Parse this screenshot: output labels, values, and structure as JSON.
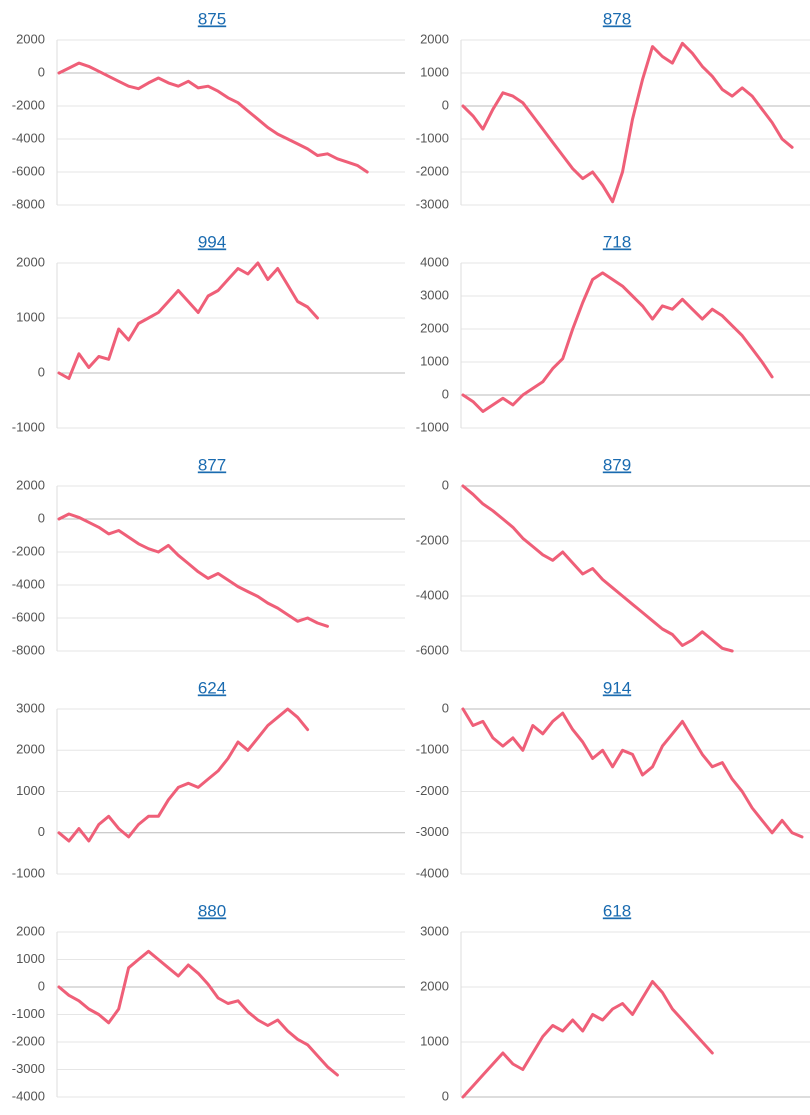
{
  "chart_data": [
    {
      "type": "line",
      "title": "875",
      "color": "#ef5f78",
      "ylim": [
        -8000,
        2000
      ],
      "yticks": [
        -8000,
        -6000,
        -4000,
        -2000,
        0,
        2000
      ],
      "grid": true,
      "values": [
        0,
        300,
        600,
        400,
        100,
        -200,
        -500,
        -800,
        -950,
        -600,
        -300,
        -600,
        -800,
        -500,
        -900,
        -800,
        -1100,
        -1500,
        -1800,
        -2300,
        -2800,
        -3300,
        -3700,
        -4000,
        -4300,
        -4600,
        -5000,
        -4900,
        -5200,
        -5400,
        -5600,
        -6000
      ]
    },
    {
      "type": "line",
      "title": "878",
      "color": "#ef5f78",
      "ylim": [
        -3000,
        2000
      ],
      "yticks": [
        -3000,
        -2000,
        -1000,
        0,
        1000,
        2000
      ],
      "grid": true,
      "values": [
        0,
        -300,
        -700,
        -100,
        400,
        300,
        100,
        -300,
        -700,
        -1100,
        -1500,
        -1900,
        -2200,
        -2000,
        -2400,
        -2900,
        -2000,
        -400,
        800,
        1800,
        1500,
        1300,
        1900,
        1600,
        1200,
        900,
        500,
        300,
        550,
        300,
        -100,
        -500,
        -1000,
        -1250
      ]
    },
    {
      "type": "line",
      "title": "994",
      "color": "#ef5f78",
      "ylim": [
        -1000,
        2000
      ],
      "yticks": [
        -1000,
        0,
        1000,
        2000
      ],
      "grid": true,
      "values": [
        0,
        -100,
        350,
        100,
        300,
        250,
        800,
        600,
        900,
        1000,
        1100,
        1300,
        1500,
        1300,
        1100,
        1400,
        1500,
        1700,
        1900,
        1800,
        2000,
        1700,
        1900,
        1600,
        1300,
        1200,
        1000
      ]
    },
    {
      "type": "line",
      "title": "718",
      "color": "#ef5f78",
      "ylim": [
        -1000,
        4000
      ],
      "yticks": [
        -1000,
        0,
        1000,
        2000,
        3000,
        4000
      ],
      "grid": true,
      "values": [
        0,
        -200,
        -500,
        -300,
        -100,
        -300,
        0,
        200,
        400,
        800,
        1100,
        2000,
        2800,
        3500,
        3700,
        3500,
        3300,
        3000,
        2700,
        2300,
        2700,
        2600,
        2900,
        2600,
        2300,
        2600,
        2400,
        2100,
        1800,
        1400,
        1000,
        550
      ]
    },
    {
      "type": "line",
      "title": "877",
      "color": "#ef5f78",
      "ylim": [
        -8000,
        2000
      ],
      "yticks": [
        -8000,
        -6000,
        -4000,
        -2000,
        0,
        2000
      ],
      "grid": true,
      "values": [
        0,
        300,
        100,
        -200,
        -500,
        -900,
        -700,
        -1100,
        -1500,
        -1800,
        -2000,
        -1600,
        -2200,
        -2700,
        -3200,
        -3600,
        -3300,
        -3700,
        -4100,
        -4400,
        -4700,
        -5100,
        -5400,
        -5800,
        -6200,
        -6000,
        -6300,
        -6500
      ]
    },
    {
      "type": "line",
      "title": "879",
      "color": "#ef5f78",
      "ylim": [
        -6000,
        0
      ],
      "yticks": [
        -6000,
        -4000,
        -2000,
        0
      ],
      "grid": true,
      "values": [
        0,
        -300,
        -650,
        -900,
        -1200,
        -1500,
        -1900,
        -2200,
        -2500,
        -2700,
        -2400,
        -2800,
        -3200,
        -3000,
        -3400,
        -3700,
        -4000,
        -4300,
        -4600,
        -4900,
        -5200,
        -5400,
        -5800,
        -5600,
        -5300,
        -5600,
        -5900,
        -6000
      ]
    },
    {
      "type": "line",
      "title": "624",
      "color": "#ef5f78",
      "ylim": [
        -1000,
        3000
      ],
      "yticks": [
        -1000,
        0,
        1000,
        2000,
        3000
      ],
      "grid": true,
      "values": [
        0,
        -200,
        100,
        -200,
        200,
        400,
        100,
        -100,
        200,
        400,
        400,
        800,
        1100,
        1200,
        1100,
        1300,
        1500,
        1800,
        2200,
        2000,
        2300,
        2600,
        2800,
        3000,
        2800,
        2500
      ]
    },
    {
      "type": "line",
      "title": "914",
      "color": "#ef5f78",
      "ylim": [
        -4000,
        0
      ],
      "yticks": [
        -4000,
        -3000,
        -2000,
        -1000,
        0
      ],
      "grid": true,
      "values": [
        0,
        -400,
        -300,
        -700,
        -900,
        -700,
        -1000,
        -400,
        -600,
        -300,
        -100,
        -500,
        -800,
        -1200,
        -1000,
        -1400,
        -1000,
        -1100,
        -1600,
        -1400,
        -900,
        -600,
        -300,
        -700,
        -1100,
        -1400,
        -1300,
        -1700,
        -2000,
        -2400,
        -2700,
        -3000,
        -2700,
        -3000,
        -3100
      ]
    },
    {
      "type": "line",
      "title": "880",
      "color": "#ef5f78",
      "ylim": [
        -4000,
        2000
      ],
      "yticks": [
        -4000,
        -3000,
        -2000,
        -1000,
        0,
        1000,
        2000
      ],
      "grid": true,
      "values": [
        0,
        -300,
        -500,
        -800,
        -1000,
        -1300,
        -800,
        700,
        1000,
        1300,
        1000,
        700,
        400,
        800,
        500,
        100,
        -400,
        -600,
        -500,
        -900,
        -1200,
        -1400,
        -1200,
        -1600,
        -1900,
        -2100,
        -2500,
        -2900,
        -3200
      ]
    },
    {
      "type": "line",
      "title": "618",
      "color": "#ef5f78",
      "ylim": [
        0,
        3000
      ],
      "yticks": [
        0,
        1000,
        2000,
        3000
      ],
      "grid": true,
      "values": [
        0,
        200,
        400,
        600,
        800,
        600,
        500,
        800,
        1100,
        1300,
        1200,
        1400,
        1200,
        1500,
        1400,
        1600,
        1700,
        1500,
        1800,
        2100,
        1900,
        1600,
        1400,
        1200,
        1000,
        800
      ]
    }
  ]
}
